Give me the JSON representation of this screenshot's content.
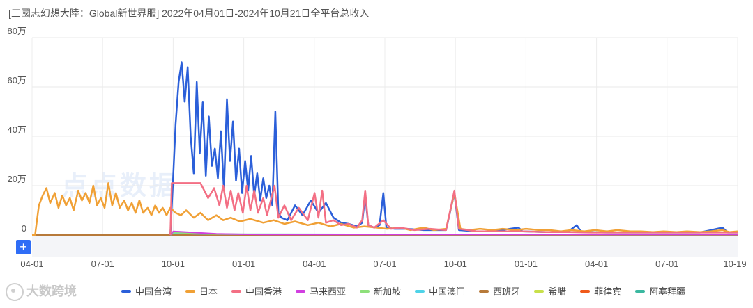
{
  "title": "[三國志幻想大陸：Global新世界服] 2022年04月01日-2024年10月21日全平台总收入",
  "zoom_label": "+",
  "brand_text": "大数跨境",
  "watermark_text": "点点数据",
  "colors": {
    "中国台湾": "#2b5fd9",
    "日本": "#f0a035",
    "中国香港": "#f36f84",
    "马来西亚": "#d13fe0",
    "新加坡": "#8ee07a",
    "中国澳门": "#4fd3e8",
    "西班牙": "#b77a3a",
    "希腊": "#c8e04a",
    "菲律宾": "#f05a1a",
    "阿塞拜疆": "#3bb8a0"
  },
  "chart_data": {
    "type": "line",
    "title": "[三國志幻想大陸：Global新世界服] 2022年04月01日-2024年10月21日全平台总收入",
    "x_tick_labels": [
      "04-01",
      "07-01",
      "10-01",
      "01-01",
      "04-01",
      "07-01",
      "10-01",
      "01-01",
      "04-01",
      "07-01",
      "10-19"
    ],
    "y_tick_labels": [
      "0",
      "20万",
      "40万",
      "60万",
      "80万"
    ],
    "ylim": [
      0,
      800000
    ],
    "x_range": [
      "2022-04-01",
      "2024-10-21"
    ],
    "grid": true,
    "legend_position": "bottom",
    "series": [
      {
        "name": "中国台湾",
        "points": [
          [
            "2022-10-01",
            0
          ],
          [
            "2022-10-04",
            180000
          ],
          [
            "2022-10-08",
            450000
          ],
          [
            "2022-10-12",
            620000
          ],
          [
            "2022-10-16",
            700000
          ],
          [
            "2022-10-20",
            540000
          ],
          [
            "2022-10-24",
            680000
          ],
          [
            "2022-10-28",
            400000
          ],
          [
            "2022-11-01",
            250000
          ],
          [
            "2022-11-05",
            620000
          ],
          [
            "2022-11-09",
            330000
          ],
          [
            "2022-11-13",
            540000
          ],
          [
            "2022-11-17",
            240000
          ],
          [
            "2022-11-21",
            480000
          ],
          [
            "2022-11-25",
            280000
          ],
          [
            "2022-11-29",
            350000
          ],
          [
            "2022-12-03",
            230000
          ],
          [
            "2022-12-07",
            420000
          ],
          [
            "2022-12-11",
            180000
          ],
          [
            "2022-12-15",
            550000
          ],
          [
            "2022-12-19",
            300000
          ],
          [
            "2022-12-23",
            460000
          ],
          [
            "2022-12-27",
            220000
          ],
          [
            "2022-12-31",
            350000
          ],
          [
            "2023-01-04",
            170000
          ],
          [
            "2023-01-08",
            300000
          ],
          [
            "2023-01-12",
            180000
          ],
          [
            "2023-01-16",
            320000
          ],
          [
            "2023-01-20",
            160000
          ],
          [
            "2023-01-24",
            250000
          ],
          [
            "2023-01-28",
            140000
          ],
          [
            "2023-02-01",
            230000
          ],
          [
            "2023-02-05",
            150000
          ],
          [
            "2023-02-09",
            200000
          ],
          [
            "2023-02-13",
            120000
          ],
          [
            "2023-02-17",
            500000
          ],
          [
            "2023-02-21",
            90000
          ],
          [
            "2023-02-25",
            70000
          ],
          [
            "2023-03-05",
            60000
          ],
          [
            "2023-03-15",
            120000
          ],
          [
            "2023-03-25",
            80000
          ],
          [
            "2023-04-05",
            140000
          ],
          [
            "2023-04-15",
            90000
          ],
          [
            "2023-04-25",
            130000
          ],
          [
            "2023-05-05",
            70000
          ],
          [
            "2023-05-15",
            50000
          ],
          [
            "2023-05-25",
            45000
          ],
          [
            "2023-06-05",
            35000
          ],
          [
            "2023-06-12",
            50000
          ],
          [
            "2023-06-16",
            160000
          ],
          [
            "2023-06-20",
            40000
          ],
          [
            "2023-06-28",
            30000
          ],
          [
            "2023-07-05",
            40000
          ],
          [
            "2023-07-10",
            170000
          ],
          [
            "2023-07-14",
            30000
          ],
          [
            "2023-07-25",
            25000
          ],
          [
            "2023-08-10",
            25000
          ],
          [
            "2023-09-01",
            20000
          ],
          [
            "2023-10-01",
            20000
          ],
          [
            "2023-10-12",
            170000
          ],
          [
            "2023-10-18",
            20000
          ],
          [
            "2023-11-10",
            15000
          ],
          [
            "2023-12-01",
            15000
          ],
          [
            "2024-01-05",
            30000
          ],
          [
            "2024-01-10",
            15000
          ],
          [
            "2024-02-10",
            12000
          ],
          [
            "2024-03-10",
            12000
          ],
          [
            "2024-03-22",
            40000
          ],
          [
            "2024-03-28",
            12000
          ],
          [
            "2024-05-01",
            10000
          ],
          [
            "2024-06-01",
            10000
          ],
          [
            "2024-07-01",
            10000
          ],
          [
            "2024-08-01",
            10000
          ],
          [
            "2024-09-01",
            10000
          ],
          [
            "2024-10-01",
            30000
          ],
          [
            "2024-10-08",
            10000
          ],
          [
            "2024-10-21",
            10000
          ]
        ]
      },
      {
        "name": "日本",
        "points": [
          [
            "2022-04-01",
            0
          ],
          [
            "2022-04-05",
            0
          ],
          [
            "2022-04-10",
            120000
          ],
          [
            "2022-04-15",
            160000
          ],
          [
            "2022-04-20",
            190000
          ],
          [
            "2022-04-25",
            130000
          ],
          [
            "2022-05-01",
            170000
          ],
          [
            "2022-05-06",
            110000
          ],
          [
            "2022-05-11",
            160000
          ],
          [
            "2022-05-16",
            120000
          ],
          [
            "2022-05-21",
            150000
          ],
          [
            "2022-05-26",
            100000
          ],
          [
            "2022-06-01",
            180000
          ],
          [
            "2022-06-06",
            140000
          ],
          [
            "2022-06-11",
            170000
          ],
          [
            "2022-06-16",
            130000
          ],
          [
            "2022-06-21",
            200000
          ],
          [
            "2022-06-26",
            120000
          ],
          [
            "2022-07-01",
            150000
          ],
          [
            "2022-07-06",
            110000
          ],
          [
            "2022-07-11",
            210000
          ],
          [
            "2022-07-16",
            120000
          ],
          [
            "2022-07-21",
            170000
          ],
          [
            "2022-07-26",
            110000
          ],
          [
            "2022-08-01",
            140000
          ],
          [
            "2022-08-06",
            100000
          ],
          [
            "2022-08-11",
            130000
          ],
          [
            "2022-08-16",
            90000
          ],
          [
            "2022-08-21",
            140000
          ],
          [
            "2022-08-26",
            90000
          ],
          [
            "2022-09-01",
            110000
          ],
          [
            "2022-09-06",
            80000
          ],
          [
            "2022-09-11",
            120000
          ],
          [
            "2022-09-16",
            90000
          ],
          [
            "2022-09-21",
            110000
          ],
          [
            "2022-09-26",
            80000
          ],
          [
            "2022-10-01",
            110000
          ],
          [
            "2022-10-08",
            90000
          ],
          [
            "2022-10-15",
            80000
          ],
          [
            "2022-10-22",
            100000
          ],
          [
            "2022-11-01",
            70000
          ],
          [
            "2022-11-10",
            90000
          ],
          [
            "2022-11-20",
            60000
          ],
          [
            "2022-12-01",
            80000
          ],
          [
            "2022-12-10",
            60000
          ],
          [
            "2022-12-20",
            70000
          ],
          [
            "2023-01-01",
            55000
          ],
          [
            "2023-01-15",
            65000
          ],
          [
            "2023-02-01",
            50000
          ],
          [
            "2023-02-15",
            60000
          ],
          [
            "2023-03-01",
            45000
          ],
          [
            "2023-03-15",
            55000
          ],
          [
            "2023-04-01",
            40000
          ],
          [
            "2023-04-15",
            50000
          ],
          [
            "2023-05-01",
            35000
          ],
          [
            "2023-05-15",
            45000
          ],
          [
            "2023-06-01",
            30000
          ],
          [
            "2023-06-15",
            35000
          ],
          [
            "2023-07-01",
            30000
          ],
          [
            "2023-07-15",
            25000
          ],
          [
            "2023-08-01",
            30000
          ],
          [
            "2023-08-15",
            20000
          ],
          [
            "2023-09-01",
            30000
          ],
          [
            "2023-09-15",
            20000
          ],
          [
            "2023-10-01",
            25000
          ],
          [
            "2023-10-12",
            170000
          ],
          [
            "2023-10-20",
            25000
          ],
          [
            "2023-11-01",
            20000
          ],
          [
            "2023-11-15",
            25000
          ],
          [
            "2023-12-01",
            20000
          ],
          [
            "2023-12-15",
            25000
          ],
          [
            "2024-01-01",
            20000
          ],
          [
            "2024-01-15",
            25000
          ],
          [
            "2024-02-01",
            20000
          ],
          [
            "2024-02-15",
            20000
          ],
          [
            "2024-03-01",
            15000
          ],
          [
            "2024-03-15",
            20000
          ],
          [
            "2024-04-01",
            15000
          ],
          [
            "2024-04-15",
            20000
          ],
          [
            "2024-05-01",
            15000
          ],
          [
            "2024-05-15",
            20000
          ],
          [
            "2024-06-01",
            15000
          ],
          [
            "2024-06-15",
            15000
          ],
          [
            "2024-07-01",
            12000
          ],
          [
            "2024-07-15",
            15000
          ],
          [
            "2024-08-01",
            12000
          ],
          [
            "2024-08-15",
            15000
          ],
          [
            "2024-09-01",
            12000
          ],
          [
            "2024-09-15",
            15000
          ],
          [
            "2024-10-01",
            20000
          ],
          [
            "2024-10-10",
            12000
          ],
          [
            "2024-10-21",
            15000
          ]
        ]
      },
      {
        "name": "中国香港",
        "points": [
          [
            "2022-10-01",
            0
          ],
          [
            "2022-10-03",
            210000
          ],
          [
            "2022-10-20",
            210000
          ],
          [
            "2022-11-10",
            210000
          ],
          [
            "2022-11-20",
            150000
          ],
          [
            "2022-11-28",
            190000
          ],
          [
            "2022-12-05",
            120000
          ],
          [
            "2022-12-10",
            200000
          ],
          [
            "2022-12-15",
            110000
          ],
          [
            "2022-12-20",
            180000
          ],
          [
            "2022-12-25",
            100000
          ],
          [
            "2022-12-30",
            170000
          ],
          [
            "2023-01-05",
            90000
          ],
          [
            "2023-01-10",
            200000
          ],
          [
            "2023-01-15",
            100000
          ],
          [
            "2023-01-20",
            180000
          ],
          [
            "2023-01-25",
            90000
          ],
          [
            "2023-02-01",
            150000
          ],
          [
            "2023-02-06",
            80000
          ],
          [
            "2023-02-11",
            140000
          ],
          [
            "2023-02-16",
            200000
          ],
          [
            "2023-02-21",
            70000
          ],
          [
            "2023-03-01",
            120000
          ],
          [
            "2023-03-10",
            60000
          ],
          [
            "2023-03-20",
            110000
          ],
          [
            "2023-04-01",
            60000
          ],
          [
            "2023-04-10",
            170000
          ],
          [
            "2023-04-15",
            70000
          ],
          [
            "2023-04-20",
            180000
          ],
          [
            "2023-04-25",
            50000
          ],
          [
            "2023-05-05",
            60000
          ],
          [
            "2023-05-15",
            40000
          ],
          [
            "2023-05-25",
            45000
          ],
          [
            "2023-06-05",
            30000
          ],
          [
            "2023-06-12",
            60000
          ],
          [
            "2023-06-16",
            180000
          ],
          [
            "2023-06-20",
            40000
          ],
          [
            "2023-06-28",
            30000
          ],
          [
            "2023-07-10",
            60000
          ],
          [
            "2023-07-20",
            25000
          ],
          [
            "2023-08-01",
            30000
          ],
          [
            "2023-08-20",
            20000
          ],
          [
            "2023-09-10",
            25000
          ],
          [
            "2023-10-01",
            20000
          ],
          [
            "2023-10-12",
            180000
          ],
          [
            "2023-10-18",
            25000
          ],
          [
            "2023-11-10",
            15000
          ],
          [
            "2023-12-10",
            15000
          ],
          [
            "2024-01-10",
            15000
          ],
          [
            "2024-02-10",
            12000
          ],
          [
            "2024-03-10",
            12000
          ],
          [
            "2024-04-10",
            10000
          ],
          [
            "2024-05-10",
            10000
          ],
          [
            "2024-06-10",
            10000
          ],
          [
            "2024-07-10",
            10000
          ],
          [
            "2024-08-10",
            10000
          ],
          [
            "2024-09-10",
            10000
          ],
          [
            "2024-10-21",
            10000
          ]
        ]
      },
      {
        "name": "马来西亚",
        "points": [
          [
            "2022-10-01",
            0
          ],
          [
            "2022-10-05",
            15000
          ],
          [
            "2022-11-01",
            10000
          ],
          [
            "2022-12-01",
            5000
          ],
          [
            "2023-01-01",
            3000
          ],
          [
            "2023-02-01",
            2000
          ],
          [
            "2024-10-21",
            2000
          ]
        ]
      },
      {
        "name": "新加坡",
        "points": [
          [
            "2022-10-01",
            0
          ],
          [
            "2022-10-05",
            10000
          ],
          [
            "2022-11-01",
            7000
          ],
          [
            "2022-12-01",
            4000
          ],
          [
            "2023-01-01",
            3000
          ],
          [
            "2024-10-21",
            2000
          ]
        ]
      },
      {
        "name": "中国澳门",
        "points": [
          [
            "2022-10-01",
            0
          ],
          [
            "2022-10-05",
            8000
          ],
          [
            "2022-11-01",
            5000
          ],
          [
            "2023-01-01",
            3000
          ],
          [
            "2024-10-21",
            2000
          ]
        ]
      },
      {
        "name": "西班牙",
        "points": [
          [
            "2022-04-01",
            0
          ],
          [
            "2024-10-21",
            0
          ]
        ]
      },
      {
        "name": "希腊",
        "points": [
          [
            "2022-04-01",
            0
          ],
          [
            "2024-10-21",
            0
          ]
        ]
      },
      {
        "name": "菲律宾",
        "points": [
          [
            "2022-04-01",
            0
          ],
          [
            "2024-10-21",
            0
          ]
        ]
      },
      {
        "name": "阿塞拜疆",
        "points": [
          [
            "2022-04-01",
            0
          ],
          [
            "2024-10-21",
            0
          ]
        ]
      }
    ]
  }
}
